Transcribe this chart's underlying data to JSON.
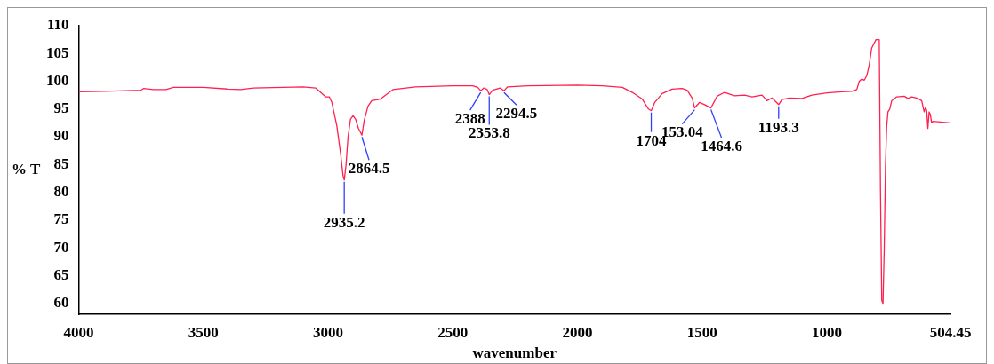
{
  "chart_data": {
    "type": "line",
    "xlabel": "wavenumber",
    "ylabel": "% T",
    "xlim": [
      4000,
      504.45
    ],
    "ylim": [
      58,
      110
    ],
    "xticks": [
      4000,
      3500,
      3000,
      2500,
      2000,
      1500,
      1000,
      504.45
    ],
    "yticks": [
      60,
      65,
      70,
      75,
      80,
      85,
      90,
      95,
      100,
      105,
      110
    ],
    "grid": false,
    "legend": false,
    "marker": "none",
    "line_style": "solid",
    "series": [
      {
        "color": "#ff2050",
        "x": [
          4000,
          3900,
          3750,
          3740,
          3700,
          3650,
          3620,
          3500,
          3400,
          3350,
          3300,
          3100,
          3050,
          3030,
          3010,
          2995,
          2985,
          2965,
          2950,
          2940,
          2935.2,
          2928,
          2920,
          2910,
          2900,
          2890,
          2878,
          2864.5,
          2855,
          2840,
          2825,
          2790,
          2770,
          2740,
          2650,
          2500,
          2420,
          2400,
          2388,
          2375,
          2362,
          2353.8,
          2340,
          2310,
          2294.5,
          2280,
          2200,
          2000,
          1900,
          1820,
          1780,
          1740,
          1715,
          1704,
          1690,
          1660,
          1620,
          1580,
          1560,
          1540,
          1530,
          1510,
          1490,
          1464.6,
          1440,
          1410,
          1370,
          1330,
          1300,
          1260,
          1240,
          1220,
          1193.3,
          1180,
          1150,
          1100,
          1060,
          1000,
          940,
          900,
          880,
          870,
          860,
          850,
          840,
          830,
          820,
          803,
          790,
          785,
          780,
          775,
          770,
          765,
          760,
          755,
          748,
          740,
          720,
          690,
          675,
          660,
          640,
          620,
          610,
          605,
          600,
          595,
          590,
          585,
          580,
          575,
          505
        ],
        "values": [
          98.1,
          98.2,
          98.4,
          98.7,
          98.5,
          98.5,
          98.9,
          98.9,
          98.6,
          98.5,
          98.8,
          99.0,
          98.8,
          98.0,
          97.2,
          97.2,
          96.2,
          92,
          87,
          83,
          82.2,
          85,
          90,
          93.2,
          93.8,
          93.2,
          91.5,
          90.3,
          93,
          95.5,
          96.5,
          96.8,
          97.5,
          98.5,
          99,
          99.2,
          99.2,
          98.9,
          98.3,
          98.8,
          98.5,
          97.6,
          98.4,
          98.8,
          98.3,
          99,
          99.2,
          99.3,
          99.2,
          98.9,
          98.0,
          96.8,
          95,
          94.7,
          96.2,
          97.8,
          98.6,
          98.7,
          98.4,
          97,
          95.2,
          96.2,
          95.8,
          95.2,
          97.3,
          98.0,
          97.4,
          97.5,
          97.2,
          97.5,
          96.5,
          97.0,
          95.8,
          96.7,
          97,
          96.9,
          97.5,
          97.9,
          98.1,
          98.2,
          98.5,
          100,
          100.4,
          100.2,
          101,
          103,
          106,
          107.5,
          107.5,
          80,
          60.5,
          60,
          70,
          85,
          92,
          94.5,
          95,
          96.5,
          97.2,
          97.3,
          96.9,
          97.2,
          97,
          96.5,
          94.5,
          95.2,
          94.8,
          91.5,
          94.5,
          94,
          92.5,
          92.8,
          92.5
        ]
      }
    ],
    "annotations": [
      {
        "text": "2935.2",
        "x": 2935.2,
        "y": 82.2
      },
      {
        "text": "2864.5",
        "x": 2864.5,
        "y": 90.3
      },
      {
        "text": "2388",
        "x": 2388,
        "y": 98.3
      },
      {
        "text": "2353.8",
        "x": 2353.8,
        "y": 97.6
      },
      {
        "text": "2294.5",
        "x": 2294.5,
        "y": 98.3
      },
      {
        "text": "1704",
        "x": 1704,
        "y": 94.7
      },
      {
        "text": "153.04",
        "x": 1530,
        "y": 95.2
      },
      {
        "text": "1464.6",
        "x": 1464.6,
        "y": 95.2
      },
      {
        "text": "1193.3",
        "x": 1193.3,
        "y": 95.8
      }
    ]
  }
}
